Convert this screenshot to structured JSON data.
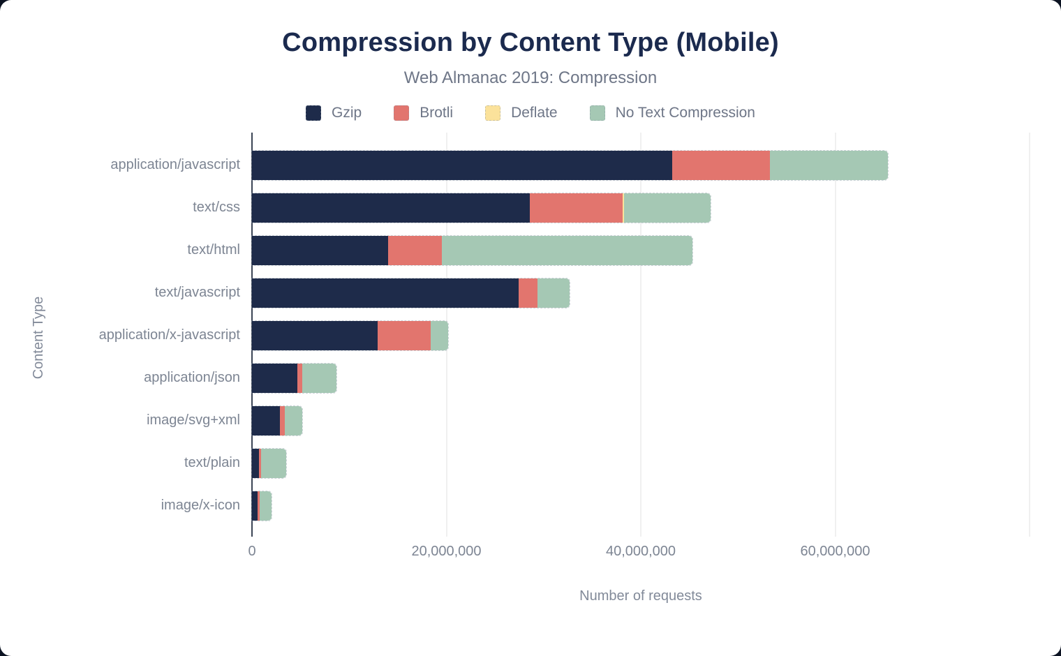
{
  "page": {
    "background_color": "#0c1322",
    "card_color": "#ffffff"
  },
  "header": {
    "title": "Compression by Content Type (Mobile)",
    "subtitle": "Web Almanac 2019: Compression"
  },
  "legend": [
    {
      "label": "Gzip",
      "color": "#1e2b4a"
    },
    {
      "label": "Brotli",
      "color": "#e2756e"
    },
    {
      "label": "Deflate",
      "color": "#fbe29b"
    },
    {
      "label": "No Text Compression",
      "color": "#a5c8b4"
    }
  ],
  "chart_data": {
    "type": "bar",
    "orientation": "horizontal",
    "stacked": true,
    "title": "Compression by Content Type (Mobile)",
    "subtitle": "Web Almanac 2019: Compression",
    "xlabel": "Number of requests",
    "ylabel": "Content Type",
    "xlim": [
      0,
      80000000
    ],
    "grid": true,
    "legend_position": "top",
    "x_ticks": [
      {
        "value": 0,
        "label": "0"
      },
      {
        "value": 20000000,
        "label": "20,000,000"
      },
      {
        "value": 40000000,
        "label": "40,000,000"
      },
      {
        "value": 60000000,
        "label": "60,000,000"
      }
    ],
    "gridline_values": [
      20000000,
      40000000,
      60000000,
      80000000
    ],
    "categories": [
      "application/javascript",
      "text/css",
      "text/html",
      "text/javascript",
      "application/x-javascript",
      "application/json",
      "image/svg+xml",
      "text/plain",
      "image/x-icon"
    ],
    "series": [
      {
        "name": "Gzip",
        "color": "#1e2b4a",
        "values": [
          43200000,
          28600000,
          14000000,
          27400000,
          12900000,
          4700000,
          2900000,
          700000,
          600000
        ]
      },
      {
        "name": "Brotli",
        "color": "#e2756e",
        "values": [
          10100000,
          9500000,
          5500000,
          2000000,
          5500000,
          500000,
          500000,
          200000,
          200000
        ]
      },
      {
        "name": "Deflate",
        "color": "#fbe29b",
        "values": [
          0,
          200000,
          0,
          0,
          0,
          0,
          0,
          0,
          0
        ]
      },
      {
        "name": "No Text Compression",
        "color": "#a5c8b4",
        "values": [
          12100000,
          8900000,
          25800000,
          3300000,
          1800000,
          3500000,
          1800000,
          2600000,
          1200000
        ]
      }
    ]
  }
}
